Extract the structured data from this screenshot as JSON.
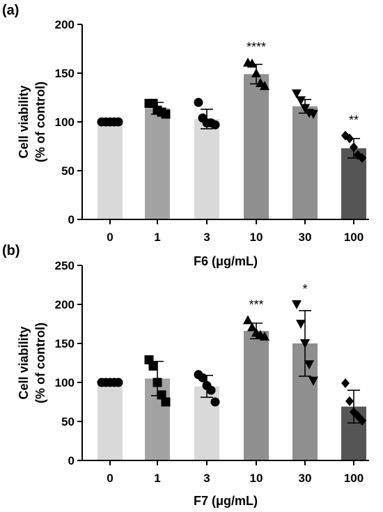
{
  "chart_data": [
    {
      "panel_label": "(a)",
      "type": "bar",
      "categories": [
        "0",
        "1",
        "3",
        "10",
        "30",
        "100"
      ],
      "values": [
        100,
        114,
        103,
        149,
        116,
        73
      ],
      "sd": [
        0.5,
        6,
        10,
        10,
        7,
        10
      ],
      "points": [
        [
          100,
          100,
          100,
          100,
          100
        ],
        [
          119,
          119,
          112,
          110,
          108
        ],
        [
          120,
          104,
          99,
          99,
          97
        ],
        [
          161,
          160,
          150,
          140,
          137
        ],
        [
          129,
          122,
          114,
          109,
          108
        ],
        [
          86,
          83,
          74,
          66,
          63
        ]
      ],
      "significance": [
        "",
        "",
        "",
        "****",
        "",
        "**"
      ],
      "xlabel": "F6 (μg/mL)",
      "ylabel": [
        "Cell viability",
        "(% of control)"
      ],
      "ylim": [
        0,
        200
      ],
      "yticks": [
        0,
        50,
        100,
        150,
        200
      ]
    },
    {
      "panel_label": "(b)",
      "type": "bar",
      "categories": [
        "0",
        "1",
        "3",
        "10",
        "30",
        "100"
      ],
      "values": [
        100,
        105,
        95,
        166,
        150,
        69
      ],
      "sd": [
        0.5,
        22,
        14,
        10,
        42,
        21
      ],
      "points": [
        [
          100,
          100,
          100,
          100,
          100
        ],
        [
          129,
          121,
          100,
          84,
          75
        ],
        [
          110,
          106,
          96,
          90,
          75
        ],
        [
          180,
          171,
          164,
          161,
          159
        ],
        [
          200,
          175,
          150,
          123,
          102
        ],
        [
          99,
          76,
          62,
          57,
          51
        ]
      ],
      "significance": [
        "",
        "",
        "",
        "***",
        "*",
        ""
      ],
      "xlabel": "F7 (μg/mL)",
      "ylabel": [
        "Cell viability",
        "(% of control)"
      ],
      "ylim": [
        0,
        250
      ],
      "yticks": [
        0,
        50,
        100,
        150,
        200,
        250
      ]
    }
  ],
  "style": {
    "bar_colors": [
      "#d9d9d9",
      "#a3a3a3",
      "#d9d9d9",
      "#8f8f8f",
      "#8f8f8f",
      "#555555"
    ],
    "marker_shapes": [
      "circle",
      "square",
      "circle",
      "triangle-up",
      "triangle-down",
      "diamond"
    ],
    "marker_color": "#000000"
  }
}
